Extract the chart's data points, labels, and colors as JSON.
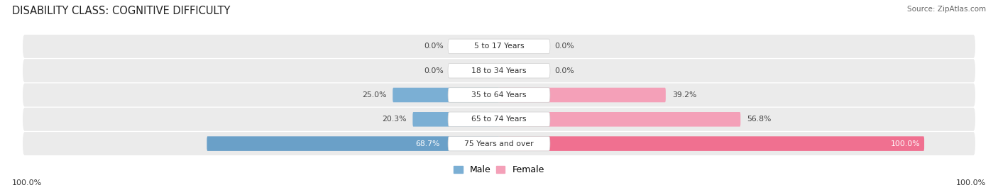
{
  "title": "DISABILITY CLASS: COGNITIVE DIFFICULTY",
  "source": "Source: ZipAtlas.com",
  "categories": [
    "5 to 17 Years",
    "18 to 34 Years",
    "35 to 64 Years",
    "65 to 74 Years",
    "75 Years and over"
  ],
  "male_values": [
    0.0,
    0.0,
    25.0,
    20.3,
    68.7
  ],
  "female_values": [
    0.0,
    0.0,
    39.2,
    56.8,
    100.0
  ],
  "male_color_normal": "#7bafd4",
  "male_color_full": "#6aa0c8",
  "female_color_normal": "#f4a0b8",
  "female_color_full": "#f07090",
  "male_label": "Male",
  "female_label": "Female",
  "row_bg_color": "#ebebeb",
  "max_value": 100.0,
  "left_label": "100.0%",
  "right_label": "100.0%",
  "title_fontsize": 10.5,
  "bar_fontsize": 7.8,
  "legend_fontsize": 9,
  "source_fontsize": 7.5,
  "axis_label_fontsize": 8
}
